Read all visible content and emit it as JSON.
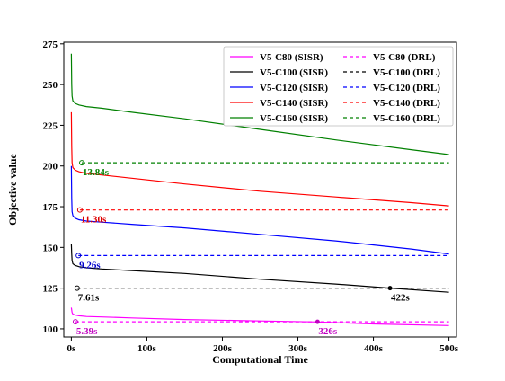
{
  "chart_data": {
    "type": "line",
    "title": "",
    "xlabel": "Computational Time",
    "ylabel": "Objective value",
    "xlim": [
      -10,
      510
    ],
    "ylim": [
      95,
      276
    ],
    "x_ticks": [
      0,
      100,
      200,
      300,
      400,
      500
    ],
    "x_tick_labels": [
      "0s",
      "100s",
      "200s",
      "300s",
      "400s",
      "500s"
    ],
    "y_ticks": [
      100,
      125,
      150,
      175,
      200,
      225,
      250,
      275
    ],
    "y_tick_labels": [
      "100",
      "125",
      "150",
      "175",
      "200",
      "225",
      "250",
      "275"
    ],
    "grid": false,
    "legend_position": "top-right",
    "series": [
      {
        "name": "V5-C80 (SISR)",
        "style": "solid",
        "color": "#ff00ff",
        "x": [
          0,
          1,
          2,
          5,
          10,
          20,
          40,
          80,
          150,
          250,
          326,
          400,
          500
        ],
        "y": [
          113,
          110,
          109,
          108.5,
          108,
          107.6,
          107.3,
          106.7,
          105.7,
          104.8,
          104.2,
          103,
          102
        ]
      },
      {
        "name": "V5-C100 (SISR)",
        "style": "solid",
        "color": "#000000",
        "x": [
          0,
          0.5,
          1,
          2,
          5,
          10,
          20,
          40,
          80,
          150,
          250,
          350,
          422,
          500
        ],
        "y": [
          152,
          146,
          142,
          140,
          139,
          138.2,
          137.5,
          136.8,
          135.8,
          134,
          130.5,
          127.5,
          125,
          122.5
        ]
      },
      {
        "name": "V5-C120 (SISR)",
        "style": "solid",
        "color": "#0000ff",
        "x": [
          0,
          0.5,
          1,
          2,
          5,
          10,
          20,
          40,
          80,
          150,
          250,
          350,
          450,
          500
        ],
        "y": [
          200,
          180,
          172,
          169.5,
          168,
          167,
          166.2,
          165.5,
          164.2,
          162,
          158,
          154,
          149,
          146
        ]
      },
      {
        "name": "V5-C140 (SISR)",
        "style": "solid",
        "color": "#ff0000",
        "x": [
          0,
          0.5,
          1,
          2,
          5,
          10,
          20,
          40,
          80,
          150,
          250,
          350,
          450,
          500
        ],
        "y": [
          233,
          212,
          202,
          199,
          197.5,
          196.5,
          195.5,
          194.5,
          192.5,
          189,
          184.5,
          181,
          177.5,
          175.5
        ]
      },
      {
        "name": "V5-C160 (SISR)",
        "style": "solid",
        "color": "#008000",
        "x": [
          0,
          0.5,
          1,
          2,
          5,
          10,
          20,
          40,
          80,
          150,
          250,
          350,
          450,
          500
        ],
        "y": [
          269,
          250,
          243,
          240,
          238.5,
          237.5,
          236.5,
          235.5,
          233,
          229,
          222.5,
          216,
          210,
          207
        ]
      },
      {
        "name": "V5-C80 (DRL)",
        "style": "dashed",
        "color": "#ff00ff",
        "x": [
          5.39,
          500
        ],
        "y": [
          104.3,
          104.3
        ]
      },
      {
        "name": "V5-C100 (DRL)",
        "style": "dashed",
        "color": "#000000",
        "x": [
          7.61,
          500
        ],
        "y": [
          125,
          125
        ]
      },
      {
        "name": "V5-C120 (DRL)",
        "style": "dashed",
        "color": "#0000ff",
        "x": [
          9.26,
          500
        ],
        "y": [
          145,
          145
        ]
      },
      {
        "name": "V5-C140 (DRL)",
        "style": "dashed",
        "color": "#ff0000",
        "x": [
          11.3,
          500
        ],
        "y": [
          173,
          173
        ]
      },
      {
        "name": "V5-C160 (DRL)",
        "style": "dashed",
        "color": "#008000",
        "x": [
          13.84,
          500
        ],
        "y": [
          202,
          202
        ]
      }
    ],
    "annotations": [
      {
        "text": "5.39s",
        "x": 5.39,
        "y": 104.3,
        "color": "#c000c0",
        "marker": "open-circle"
      },
      {
        "text": "7.61s",
        "x": 7.61,
        "y": 125,
        "color": "#000000",
        "marker": "open-circle"
      },
      {
        "text": "9.26s",
        "x": 9.26,
        "y": 145,
        "color": "#0000cc",
        "marker": "open-circle"
      },
      {
        "text": "11.30s",
        "x": 11.3,
        "y": 173,
        "color": "#dd0000",
        "marker": "open-circle"
      },
      {
        "text": "13.84s",
        "x": 13.84,
        "y": 202,
        "color": "#008000",
        "marker": "open-circle"
      },
      {
        "text": "326s",
        "x": 326,
        "y": 104.3,
        "color": "#c000c0",
        "marker": "filled-circle"
      },
      {
        "text": "422s",
        "x": 422,
        "y": 125,
        "color": "#000000",
        "marker": "filled-circle"
      }
    ]
  }
}
